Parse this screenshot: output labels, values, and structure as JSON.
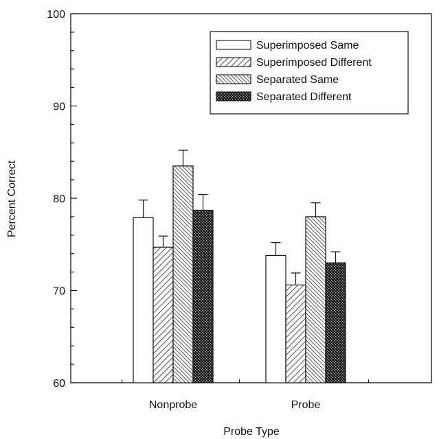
{
  "chart_data": {
    "type": "bar",
    "xlabel": "Probe Type",
    "ylabel": "Percent Correct",
    "ylim": [
      60,
      100
    ],
    "yticks": [
      60,
      70,
      80,
      90,
      100
    ],
    "categories": [
      "Nonprobe",
      "Probe"
    ],
    "legend_position": "top-right",
    "grid": false,
    "series": [
      {
        "name": "Superimposed Same",
        "pattern": "open",
        "values": [
          77.9,
          73.8
        ],
        "error": [
          1.9,
          1.4
        ]
      },
      {
        "name": "Superimposed Different",
        "pattern": "diagonal-hatch",
        "values": [
          74.7,
          70.6
        ],
        "error": [
          1.2,
          1.3
        ]
      },
      {
        "name": "Separated Same",
        "pattern": "dense-diagonal-hatch",
        "values": [
          83.5,
          78.0
        ],
        "error": [
          1.7,
          1.5
        ]
      },
      {
        "name": "Separated Different",
        "pattern": "crosshatch",
        "values": [
          78.7,
          73.0
        ],
        "error": [
          1.7,
          1.2
        ]
      }
    ]
  }
}
